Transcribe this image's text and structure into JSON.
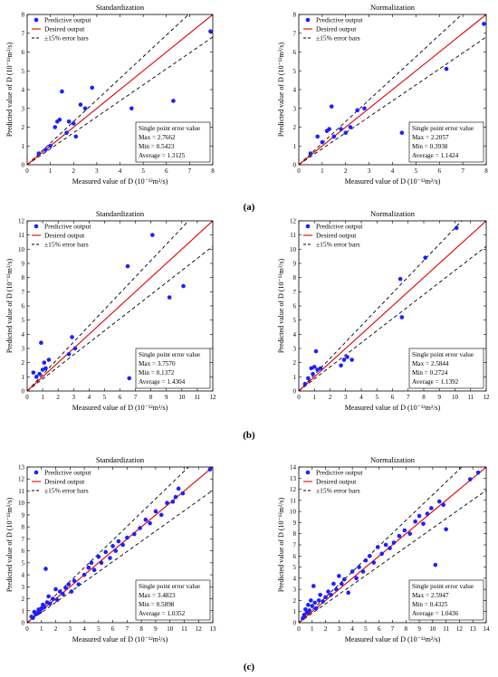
{
  "figure": {
    "labels": [
      "(a)",
      "(b)",
      "(c)"
    ]
  },
  "legend_labels": [
    "Predictive output",
    "Desired output",
    "±15% error bars"
  ],
  "error_box_title": "Single point error value",
  "colors": {
    "predictive": "#1f1fff",
    "desired": "#e00000",
    "error_bars": "#000000"
  },
  "chart_data": [
    {
      "type": "scatter",
      "row": 0,
      "col": 0,
      "title": "Standardization",
      "xlabel": "Measured value of D (10⁻¹²m²/s)",
      "ylabel": "Predicted value of D (10⁻¹²m²/s)",
      "xlim": [
        0,
        8
      ],
      "ylim": [
        0,
        8
      ],
      "ticks": [
        0,
        1,
        2,
        3,
        4,
        5,
        6,
        7,
        8
      ],
      "series": [
        {
          "name": "Predictive output",
          "x": [
            0.5,
            0.8,
            1.0,
            1.2,
            1.3,
            1.4,
            1.5,
            1.7,
            1.8,
            2.0,
            2.1,
            2.3,
            2.5,
            2.8,
            4.5,
            6.3,
            7.9
          ],
          "y": [
            0.6,
            0.8,
            1.0,
            2.0,
            2.3,
            2.4,
            3.9,
            1.7,
            2.3,
            2.2,
            1.5,
            3.2,
            3.0,
            4.1,
            3.0,
            3.4,
            7.1
          ]
        }
      ],
      "error": {
        "max": "Max = 2.7662",
        "min": "Min = 0.5423",
        "average": "Average = 1.3125"
      }
    },
    {
      "type": "scatter",
      "row": 0,
      "col": 1,
      "title": "Normalization",
      "xlabel": "Measured value of D (10⁻¹²m²/s)",
      "ylabel": "Predicted value of D (10⁻¹²m²/s)",
      "xlim": [
        0,
        8
      ],
      "ylim": [
        0,
        8
      ],
      "ticks": [
        0,
        1,
        2,
        3,
        4,
        5,
        6,
        7,
        8
      ],
      "series": [
        {
          "name": "Predictive output",
          "x": [
            0.5,
            0.8,
            1.0,
            1.2,
            1.3,
            1.4,
            1.5,
            1.8,
            2.0,
            2.2,
            2.5,
            2.8,
            4.4,
            6.3,
            7.9
          ],
          "y": [
            0.6,
            1.5,
            1.2,
            1.8,
            1.9,
            3.1,
            1.5,
            1.9,
            1.7,
            2.0,
            2.9,
            3.0,
            1.7,
            5.1,
            7.5
          ]
        }
      ],
      "error": {
        "max": "Max = 2.2057",
        "min": "Min = 0.3938",
        "average": "Average = 1.1424"
      }
    },
    {
      "type": "scatter",
      "row": 1,
      "col": 0,
      "title": "Standardization",
      "xlabel": "Measured value of D (10⁻¹²m²/s)",
      "ylabel": "Predicted value of D (10⁻¹²m²/s)",
      "xlim": [
        0,
        12
      ],
      "ylim": [
        0,
        12
      ],
      "ticks": [
        0,
        1,
        2,
        3,
        4,
        5,
        6,
        7,
        8,
        9,
        10,
        11,
        12
      ],
      "series": [
        {
          "name": "Predictive output",
          "x": [
            0.4,
            0.6,
            0.8,
            0.9,
            1.0,
            1.1,
            1.2,
            1.4,
            2.7,
            2.9,
            3.1,
            6.6,
            6.5,
            8.1,
            9.2,
            10.1
          ],
          "y": [
            1.3,
            1.0,
            1.2,
            3.4,
            1.5,
            2.0,
            1.6,
            2.2,
            2.6,
            3.8,
            3.0,
            0.9,
            8.8,
            11.0,
            6.6,
            7.4
          ]
        }
      ],
      "error": {
        "max": "Max = 3.7570",
        "min": "Min = 0.1372",
        "average": "Average = 1.4304"
      }
    },
    {
      "type": "scatter",
      "row": 1,
      "col": 1,
      "title": "Normalization",
      "xlabel": "Measured value of D (10⁻¹²m²/s)",
      "ylabel": "Predicted value of D (10⁻¹²m²/s)",
      "xlim": [
        0,
        12
      ],
      "ylim": [
        0,
        12
      ],
      "ticks": [
        0,
        1,
        2,
        3,
        4,
        5,
        6,
        7,
        8,
        9,
        10,
        11,
        12
      ],
      "series": [
        {
          "name": "Predictive output",
          "x": [
            0.4,
            0.6,
            0.8,
            0.9,
            1.0,
            1.1,
            1.2,
            1.4,
            2.7,
            2.9,
            3.1,
            3.4,
            6.5,
            6.6,
            8.1,
            10.1
          ],
          "y": [
            0.5,
            0.9,
            1.6,
            1.2,
            1.7,
            2.8,
            1.5,
            1.6,
            1.8,
            2.2,
            2.4,
            2.2,
            7.9,
            5.2,
            9.4,
            11.5
          ]
        }
      ],
      "error": {
        "max": "Max = 2.5844",
        "min": "Min = 0.2724",
        "average": "Average = 1.1392"
      }
    },
    {
      "type": "scatter",
      "row": 2,
      "col": 0,
      "title": "Standardization",
      "xlabel": "Measured value of D (10⁻¹²m²/s)",
      "ylabel": "Predicted value of D (10⁻¹²m²/s)",
      "xlim": [
        0,
        13
      ],
      "ylim": [
        0,
        13
      ],
      "ticks": [
        0,
        1,
        2,
        3,
        4,
        5,
        6,
        7,
        8,
        9,
        10,
        11,
        12,
        13
      ],
      "series": [
        {
          "name": "Predictive output",
          "x": [
            0.3,
            0.4,
            0.5,
            0.6,
            0.7,
            0.8,
            0.9,
            1.0,
            1.1,
            1.2,
            1.3,
            1.4,
            1.5,
            1.6,
            1.8,
            2.0,
            2.1,
            2.3,
            2.5,
            2.7,
            2.9,
            3.1,
            3.3,
            3.6,
            4.0,
            4.3,
            4.5,
            4.7,
            5.0,
            5.2,
            5.5,
            5.8,
            6.0,
            6.2,
            6.4,
            6.7,
            7.0,
            7.5,
            7.9,
            8.3,
            8.6,
            9.0,
            9.4,
            9.8,
            10.2,
            10.4,
            10.6,
            10.9,
            12.8
          ],
          "y": [
            0.5,
            0.4,
            0.9,
            0.7,
            0.8,
            1.1,
            0.9,
            1.2,
            1.5,
            1.3,
            4.5,
            1.7,
            2.2,
            1.6,
            2.0,
            2.8,
            1.9,
            2.6,
            2.4,
            2.9,
            3.2,
            2.6,
            3.5,
            3.2,
            4.0,
            4.6,
            5.0,
            4.4,
            5.5,
            5.0,
            5.9,
            5.4,
            6.4,
            6.0,
            6.8,
            6.5,
            7.1,
            7.4,
            7.9,
            8.6,
            8.3,
            9.3,
            9.0,
            10.0,
            10.1,
            10.5,
            11.2,
            10.8,
            12.8
          ]
        }
      ],
      "error": {
        "max": "Max = 3.4823",
        "min": "Min = 0.5898",
        "average": "Average = 1.0352"
      }
    },
    {
      "type": "scatter",
      "row": 2,
      "col": 1,
      "title": "Normalization",
      "xlabel": "Measured value of D (10⁻¹²m²/s)",
      "ylabel": "Predicted value of D (10⁻¹²m²/s)",
      "xlim": [
        0,
        14
      ],
      "ylim": [
        0,
        14
      ],
      "ticks": [
        0,
        1,
        2,
        3,
        4,
        5,
        6,
        7,
        8,
        9,
        10,
        11,
        12,
        13,
        14
      ],
      "series": [
        {
          "name": "Predictive output",
          "x": [
            0.3,
            0.4,
            0.5,
            0.6,
            0.7,
            0.8,
            0.9,
            1.0,
            1.1,
            1.2,
            1.3,
            1.5,
            1.6,
            1.8,
            2.0,
            2.2,
            2.4,
            2.6,
            2.8,
            3.0,
            3.2,
            3.4,
            3.7,
            4.0,
            4.3,
            4.5,
            4.8,
            5.0,
            5.3,
            5.6,
            5.9,
            6.2,
            6.5,
            6.8,
            7.1,
            7.5,
            7.9,
            8.3,
            8.7,
            9.0,
            9.3,
            9.6,
            9.9,
            10.2,
            10.5,
            10.8,
            11.0,
            12.8,
            13.4
          ],
          "y": [
            0.4,
            0.7,
            1.2,
            0.9,
            1.6,
            1.1,
            2.0,
            1.5,
            3.3,
            1.8,
            1.3,
            2.0,
            2.5,
            1.9,
            2.3,
            2.8,
            2.5,
            3.5,
            3.0,
            4.2,
            3.5,
            3.9,
            2.7,
            4.6,
            4.0,
            5.0,
            4.6,
            5.6,
            6.0,
            5.4,
            6.8,
            6.2,
            7.0,
            6.7,
            7.2,
            7.8,
            8.3,
            8.0,
            9.1,
            9.6,
            8.9,
            9.8,
            10.3,
            5.2,
            10.9,
            10.6,
            8.4,
            12.9,
            13.5
          ]
        }
      ],
      "error": {
        "max": "Max = 2.5947",
        "min": "Min = 0.4325",
        "average": "Average = 1.0436"
      }
    }
  ]
}
